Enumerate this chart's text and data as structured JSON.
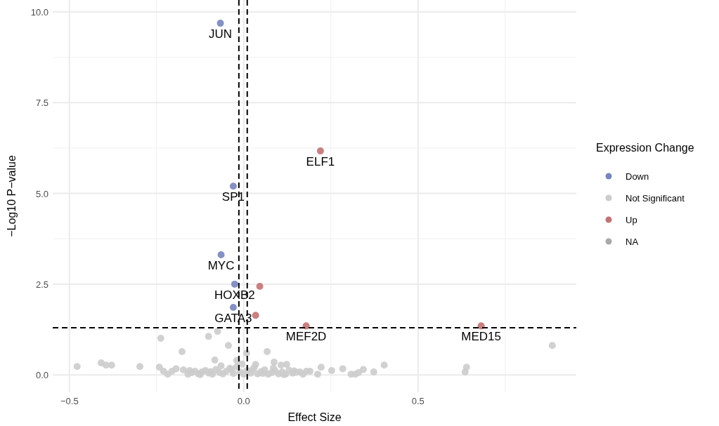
{
  "chart_data": {
    "type": "scatter",
    "xlabel": "Effect Size",
    "ylabel": "−Log10 P−value",
    "legend_title": "Expression Change",
    "legend": "right",
    "grid": true,
    "marker": "circle",
    "xlim": [
      -0.548,
      0.954
    ],
    "ylim": [
      -0.48,
      10.33
    ],
    "xticks": [
      {
        "value": -0.5,
        "label": "−0.5"
      },
      {
        "value": 0,
        "label": "0.0"
      },
      {
        "value": 0.5,
        "label": "0.5"
      }
    ],
    "yticks": [
      {
        "value": 0,
        "label": "0.0"
      },
      {
        "value": 2.5,
        "label": "2.5"
      },
      {
        "value": 5,
        "label": "5.0"
      },
      {
        "value": 7.5,
        "label": "7.5"
      },
      {
        "value": 10,
        "label": "10.0"
      }
    ],
    "series": [
      {
        "name": "Down",
        "color": "#7884bd",
        "x": [
          -0.067,
          -0.03,
          -0.065,
          -0.026,
          -0.03
        ],
        "values": [
          9.69,
          5.2,
          3.31,
          2.5,
          1.86
        ]
      },
      {
        "name": "Not Significant",
        "color": "#cccccc",
        "x": [
          -0.478,
          -0.409,
          -0.395,
          -0.379,
          -0.298,
          -0.238,
          -0.242,
          -0.23,
          -0.218,
          -0.206,
          -0.194,
          -0.177,
          -0.173,
          -0.101,
          -0.075,
          -0.044,
          -0.083,
          0.008,
          0.067,
          0.034,
          0.087,
          0.107,
          0.123,
          0.222,
          0.252,
          0.284,
          0.308,
          0.32,
          0.329,
          0.343,
          0.373,
          0.403,
          0.635,
          0.639,
          0.885,
          0.19,
          0.212,
          0.161,
          -0.02,
          -0.16,
          -0.15,
          -0.14,
          -0.13,
          -0.12,
          -0.11,
          -0.1,
          -0.09,
          -0.08,
          -0.07,
          -0.06,
          -0.05,
          -0.04,
          -0.03,
          -0.02,
          -0.01,
          0.0,
          0.01,
          0.02,
          0.03,
          0.04,
          0.05,
          0.06,
          0.07,
          0.08,
          0.09,
          0.1,
          0.11,
          0.12,
          0.13,
          0.14,
          0.15,
          0.17,
          0.18,
          -0.155,
          -0.125,
          -0.095,
          -0.065,
          -0.035,
          -0.005,
          0.025,
          0.055,
          0.085,
          0.115,
          0.145
        ],
        "values": [
          0.23,
          0.33,
          0.27,
          0.27,
          0.23,
          1.01,
          0.21,
          0.1,
          0.02,
          0.1,
          0.17,
          0.64,
          0.14,
          1.06,
          1.2,
          0.81,
          0.41,
          0.6,
          0.64,
          0.29,
          0.35,
          0.27,
          0.29,
          0.21,
          0.12,
          0.17,
          0.02,
          0.02,
          0.06,
          0.15,
          0.08,
          0.27,
          0.08,
          0.21,
          0.81,
          0.1,
          0.02,
          0.08,
          0.4,
          0.02,
          0.06,
          0.1,
          0.03,
          0.08,
          0.12,
          0.05,
          0.02,
          0.15,
          0.07,
          0.03,
          0.1,
          0.18,
          0.04,
          0.22,
          0.08,
          0.02,
          0.12,
          0.05,
          0.2,
          0.03,
          0.09,
          0.14,
          0.02,
          0.06,
          0.11,
          0.03,
          0.08,
          0.02,
          0.13,
          0.05,
          0.07,
          0.02,
          0.1,
          0.12,
          0.01,
          0.09,
          0.25,
          0.16,
          0.3,
          0.14,
          0.04,
          0.19,
          0.01,
          0.11
        ]
      },
      {
        "name": "Up",
        "color": "#c27373",
        "x": [
          0.22,
          0.046,
          0.034,
          0.179,
          0.681
        ],
        "values": [
          6.17,
          2.44,
          1.64,
          1.35,
          1.35
        ]
      },
      {
        "name": "NA",
        "color": "#a9a9a9"
      }
    ],
    "ref_lines": [
      {
        "axis": "x",
        "value": -0.014,
        "line_style": "dashed",
        "color": "#000000"
      },
      {
        "axis": "x",
        "value": 0.01,
        "line_style": "dashed",
        "color": "#000000"
      },
      {
        "axis": "y",
        "value": 1.3,
        "line_style": "dashed",
        "color": "#000000"
      }
    ],
    "annotations": [
      {
        "text": "JUN",
        "x": -0.067,
        "y": 9.69
      },
      {
        "text": "SP1",
        "x": -0.03,
        "y": 5.2
      },
      {
        "text": "MYC",
        "x": -0.065,
        "y": 3.31
      },
      {
        "text": "HOXB2",
        "x": -0.026,
        "y": 2.5
      },
      {
        "text": "GATA3",
        "x": -0.03,
        "y": 1.86
      },
      {
        "text": "ELF1",
        "x": 0.22,
        "y": 6.17
      },
      {
        "text": "MEF2D",
        "x": 0.179,
        "y": 1.35
      },
      {
        "text": "MED15",
        "x": 0.681,
        "y": 1.35
      }
    ]
  }
}
